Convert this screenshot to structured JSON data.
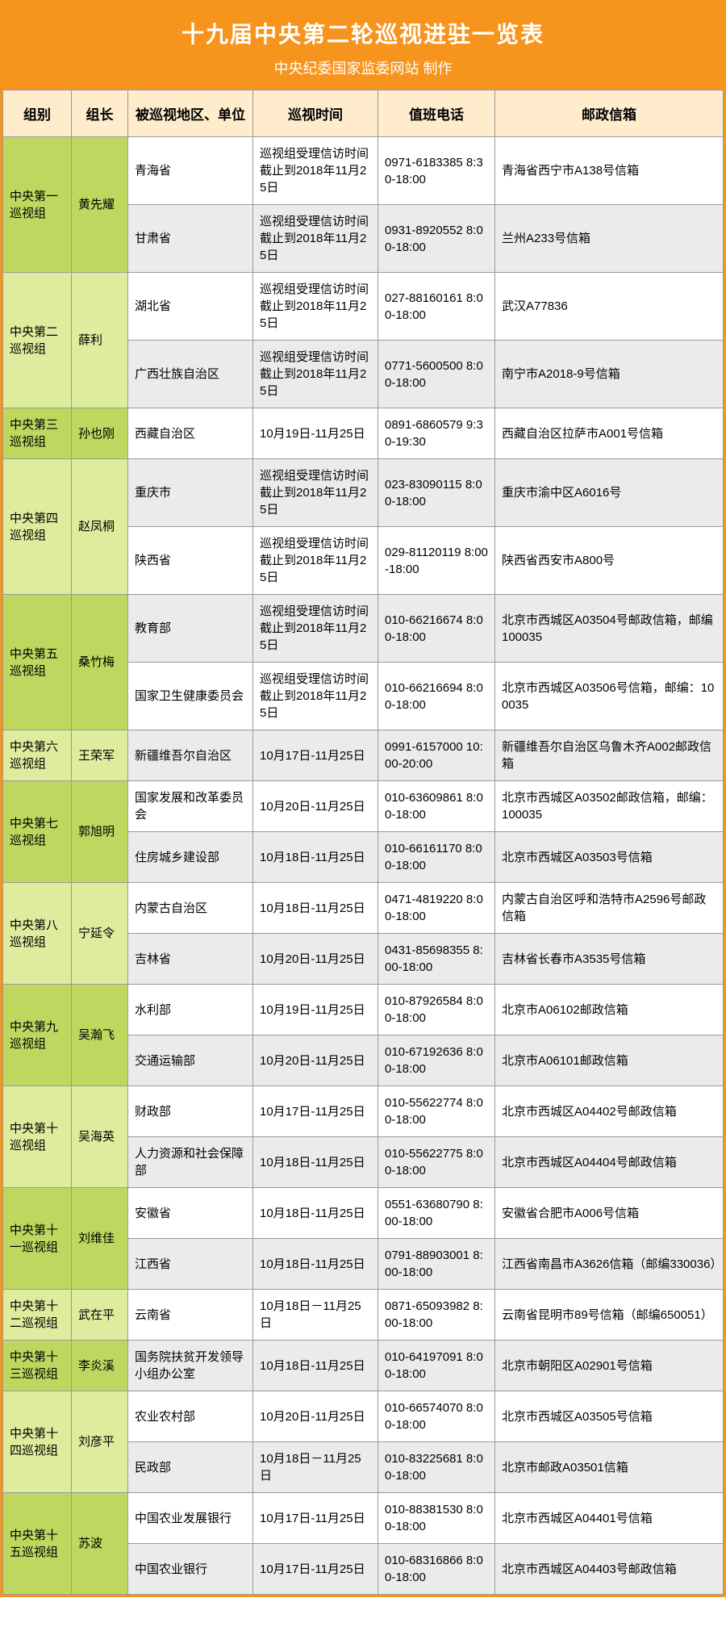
{
  "title": "十九届中央第二轮巡视进驻一览表",
  "subtitle": "中央纪委国家监委网站 制作",
  "columns": [
    "组别",
    "组长",
    "被巡视地区、单位",
    "巡视时间",
    "值班电话",
    "邮政信箱"
  ],
  "groups": [
    {
      "name": "中央第一巡视组",
      "leader": "黄先耀",
      "g": "g0",
      "rows": [
        {
          "region": "青海省",
          "time": "巡视组受理信访时间截止到2018年11月25日",
          "phone": "0971-6183385 8:30-18:00",
          "mail": "青海省西宁市A138号信箱",
          "cls": "r1"
        },
        {
          "region": "甘肃省",
          "time": "巡视组受理信访时间截止到2018年11月25日",
          "phone": "0931-8920552 8:00-18:00",
          "mail": "兰州A233号信箱",
          "cls": "r2"
        }
      ]
    },
    {
      "name": "中央第二巡视组",
      "leader": "薛利",
      "g": "g1",
      "rows": [
        {
          "region": "湖北省",
          "time": "巡视组受理信访时间截止到2018年11月25日",
          "phone": "027-88160161 8:00-18:00",
          "mail": "武汉A77836",
          "cls": "r1"
        },
        {
          "region": "广西壮族自治区",
          "time": "巡视组受理信访时间截止到2018年11月25日",
          "phone": "0771-5600500 8:00-18:00",
          "mail": "南宁市A2018-9号信箱",
          "cls": "r2"
        }
      ]
    },
    {
      "name": "中央第三巡视组",
      "leader": "孙也刚",
      "g": "g0",
      "rows": [
        {
          "region": "西藏自治区",
          "time": "10月19日-11月25日",
          "phone": "0891-6860579 9:30-19:30",
          "mail": "西藏自治区拉萨市A001号信箱",
          "cls": "r1"
        }
      ]
    },
    {
      "name": "中央第四巡视组",
      "leader": "赵凤桐",
      "g": "g1",
      "rows": [
        {
          "region": "重庆市",
          "time": "巡视组受理信访时间截止到2018年11月25日",
          "phone": "023-83090115 8:00-18:00",
          "mail": "重庆市渝中区A6016号",
          "cls": "r2"
        },
        {
          "region": "陕西省",
          "time": "巡视组受理信访时间截止到2018年11月25日",
          "phone": "029-81120119 8:00-18:00",
          "mail": "陕西省西安市A800号",
          "cls": "r1"
        }
      ]
    },
    {
      "name": "中央第五巡视组",
      "leader": "桑竹梅",
      "g": "g0",
      "rows": [
        {
          "region": "教育部",
          "time": "巡视组受理信访时间截止到2018年11月25日",
          "phone": "010-66216674 8:00-18:00",
          "mail": "北京市西城区A03504号邮政信箱，邮编100035",
          "cls": "r2"
        },
        {
          "region": "国家卫生健康委员会",
          "time": "巡视组受理信访时间截止到2018年11月25日",
          "phone": "010-66216694 8:00-18:00",
          "mail": "北京市西城区A03506号信箱，邮编：100035",
          "cls": "r1"
        }
      ]
    },
    {
      "name": "中央第六巡视组",
      "leader": "王荣军",
      "g": "g1",
      "rows": [
        {
          "region": "新疆维吾尔自治区",
          "time": "10月17日-11月25日",
          "phone": "0991-6157000 10:00-20:00",
          "mail": "新疆维吾尔自治区乌鲁木齐A002邮政信箱",
          "cls": "r2"
        }
      ]
    },
    {
      "name": "中央第七巡视组",
      "leader": "郭旭明",
      "g": "g0",
      "rows": [
        {
          "region": "国家发展和改革委员会",
          "time": "10月20日-11月25日",
          "phone": "010-63609861 8:00-18:00",
          "mail": "北京市西城区A03502邮政信箱，邮编：100035",
          "cls": "r1"
        },
        {
          "region": "住房城乡建设部",
          "time": "10月18日-11月25日",
          "phone": "010-66161170 8:00-18:00",
          "mail": "北京市西城区A03503号信箱",
          "cls": "r2"
        }
      ]
    },
    {
      "name": "中央第八巡视组",
      "leader": "宁延令",
      "g": "g1",
      "rows": [
        {
          "region": "内蒙古自治区",
          "time": "10月18日-11月25日",
          "phone": "0471-4819220 8:00-18:00",
          "mail": "内蒙古自治区呼和浩特市A2596号邮政信箱",
          "cls": "r1"
        },
        {
          "region": "吉林省",
          "time": "10月20日-11月25日",
          "phone": "0431-85698355 8:00-18:00",
          "mail": "吉林省长春市A3535号信箱",
          "cls": "r2"
        }
      ]
    },
    {
      "name": "中央第九巡视组",
      "leader": "吴瀚飞",
      "g": "g0",
      "rows": [
        {
          "region": "水利部",
          "time": "10月19日-11月25日",
          "phone": "010-87926584 8:00-18:00",
          "mail": "北京市A06102邮政信箱",
          "cls": "r1"
        },
        {
          "region": "交通运输部",
          "time": "10月20日-11月25日",
          "phone": "010-67192636 8:00-18:00",
          "mail": "北京市A06101邮政信箱",
          "cls": "r2"
        }
      ]
    },
    {
      "name": "中央第十巡视组",
      "leader": "吴海英",
      "g": "g1",
      "rows": [
        {
          "region": "财政部",
          "time": "10月17日-11月25日",
          "phone": "010-55622774 8:00-18:00",
          "mail": "北京市西城区A04402号邮政信箱",
          "cls": "r1"
        },
        {
          "region": "人力资源和社会保障部",
          "time": "10月18日-11月25日",
          "phone": "010-55622775 8:00-18:00",
          "mail": "北京市西城区A04404号邮政信箱",
          "cls": "r2"
        }
      ]
    },
    {
      "name": "中央第十一巡视组",
      "leader": "刘维佳",
      "g": "g0",
      "rows": [
        {
          "region": "安徽省",
          "time": "10月18日-11月25日",
          "phone": "0551-63680790 8:00-18:00",
          "mail": "安徽省合肥市A006号信箱",
          "cls": "r1"
        },
        {
          "region": "江西省",
          "time": "10月18日-11月25日",
          "phone": "0791-88903001 8:00-18:00",
          "mail": "江西省南昌市A3626信箱（邮编330036）",
          "cls": "r2"
        }
      ]
    },
    {
      "name": "中央第十二巡视组",
      "leader": "武在平",
      "g": "g1",
      "rows": [
        {
          "region": "云南省",
          "time": "10月18日－11月25日",
          "phone": "0871-65093982 8:00-18:00",
          "mail": "云南省昆明市89号信箱（邮编650051）",
          "cls": "r1"
        }
      ]
    },
    {
      "name": "中央第十三巡视组",
      "leader": "李炎溪",
      "g": "g0",
      "rows": [
        {
          "region": "国务院扶贫开发领导小组办公室",
          "time": "10月18日-11月25日",
          "phone": "010-64197091 8:00-18:00",
          "mail": "北京市朝阳区A02901号信箱",
          "cls": "r2"
        }
      ]
    },
    {
      "name": "中央第十四巡视组",
      "leader": "刘彦平",
      "g": "g1",
      "rows": [
        {
          "region": "农业农村部",
          "time": "10月20日-11月25日",
          "phone": "010-66574070 8:00-18:00",
          "mail": "北京市西城区A03505号信箱",
          "cls": "r1"
        },
        {
          "region": "民政部",
          "time": "10月18日－11月25日",
          "phone": "010-83225681 8:00-18:00",
          "mail": "北京市邮政A03501信箱",
          "cls": "r2"
        }
      ]
    },
    {
      "name": "中央第十五巡视组",
      "leader": "苏波",
      "g": "g0",
      "rows": [
        {
          "region": "中国农业发展银行",
          "time": "10月17日-11月25日",
          "phone": "010-88381530 8:00-18:00",
          "mail": "北京市西城区A04401号信箱",
          "cls": "r1"
        },
        {
          "region": "中国农业银行",
          "time": "10月17日-11月25日",
          "phone": "010-68316866 8:00-18:00",
          "mail": "北京市西城区A04403号邮政信箱",
          "cls": "r2"
        }
      ]
    }
  ]
}
